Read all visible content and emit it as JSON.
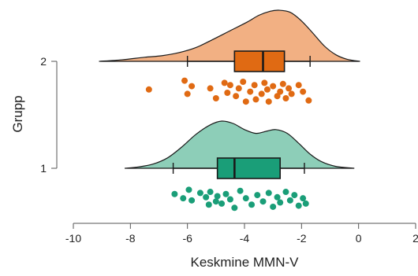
{
  "chart_data": {
    "type": "raincloud",
    "title": "",
    "xlabel": "Keskmine MMN-V",
    "ylabel": "Grupp",
    "xlim": [
      -10,
      2
    ],
    "x_ticks": [
      "-10",
      "-8",
      "-6",
      "-4",
      "-2",
      "0",
      "2"
    ],
    "y_ticks": [
      "1",
      "2"
    ],
    "groups": [
      {
        "name": "2",
        "color": "#e06a13",
        "density_fill": "#f2b083",
        "box": {
          "whisker_low": -6.0,
          "q1": -4.35,
          "median": -3.35,
          "q3": -2.6,
          "whisker_high": -1.7
        },
        "density_range": [
          -9.1,
          0.05
        ],
        "density": [
          {
            "x": -9.1,
            "y": 0.0
          },
          {
            "x": -8.3,
            "y": 0.03
          },
          {
            "x": -7.5,
            "y": 0.08
          },
          {
            "x": -6.9,
            "y": 0.11
          },
          {
            "x": -6.3,
            "y": 0.17
          },
          {
            "x": -5.7,
            "y": 0.27
          },
          {
            "x": -5.1,
            "y": 0.43
          },
          {
            "x": -4.5,
            "y": 0.6
          },
          {
            "x": -3.9,
            "y": 0.77
          },
          {
            "x": -3.5,
            "y": 0.9
          },
          {
            "x": -3.1,
            "y": 0.98
          },
          {
            "x": -2.8,
            "y": 1.0
          },
          {
            "x": -2.4,
            "y": 0.96
          },
          {
            "x": -2.0,
            "y": 0.79
          },
          {
            "x": -1.6,
            "y": 0.55
          },
          {
            "x": -1.2,
            "y": 0.3
          },
          {
            "x": -0.8,
            "y": 0.13
          },
          {
            "x": -0.4,
            "y": 0.04
          },
          {
            "x": 0.05,
            "y": 0.0
          }
        ],
        "points": [
          {
            "x": -7.35,
            "j": 0.35
          },
          {
            "x": -6.1,
            "j": -0.05
          },
          {
            "x": -6.0,
            "j": 0.55
          },
          {
            "x": -5.85,
            "j": 0.2
          },
          {
            "x": -5.2,
            "j": 0.3
          },
          {
            "x": -5.0,
            "j": 0.75
          },
          {
            "x": -4.7,
            "j": 0.05
          },
          {
            "x": -4.6,
            "j": 0.5
          },
          {
            "x": -4.5,
            "j": 0.15
          },
          {
            "x": -4.3,
            "j": 0.65
          },
          {
            "x": -4.2,
            "j": 0.3
          },
          {
            "x": -4.05,
            "j": 0.0
          },
          {
            "x": -3.95,
            "j": 0.9
          },
          {
            "x": -3.8,
            "j": 0.45
          },
          {
            "x": -3.65,
            "j": 0.15
          },
          {
            "x": -3.6,
            "j": 0.8
          },
          {
            "x": -3.4,
            "j": 0.55
          },
          {
            "x": -3.3,
            "j": 0.05
          },
          {
            "x": -3.2,
            "j": 0.35
          },
          {
            "x": -3.15,
            "j": 0.9
          },
          {
            "x": -3.0,
            "j": 0.2
          },
          {
            "x": -2.85,
            "j": 0.65
          },
          {
            "x": -2.75,
            "j": 0.45
          },
          {
            "x": -2.65,
            "j": 0.1
          },
          {
            "x": -2.55,
            "j": 0.75
          },
          {
            "x": -2.45,
            "j": 0.3
          },
          {
            "x": -2.35,
            "j": 0.55
          },
          {
            "x": -2.1,
            "j": 0.15
          },
          {
            "x": -1.95,
            "j": 0.45
          },
          {
            "x": -1.75,
            "j": 0.85
          }
        ]
      },
      {
        "name": "1",
        "color": "#1a9e78",
        "density_fill": "#8dceb8",
        "box": {
          "whisker_low": -6.5,
          "q1": -4.95,
          "median": -4.35,
          "q3": -2.75,
          "whisker_high": -1.9
        },
        "density_range": [
          -8.2,
          -0.15
        ],
        "density": [
          {
            "x": -8.2,
            "y": 0.0
          },
          {
            "x": -7.7,
            "y": 0.03
          },
          {
            "x": -7.2,
            "y": 0.09
          },
          {
            "x": -6.7,
            "y": 0.22
          },
          {
            "x": -6.2,
            "y": 0.45
          },
          {
            "x": -5.7,
            "y": 0.72
          },
          {
            "x": -5.2,
            "y": 0.92
          },
          {
            "x": -4.8,
            "y": 1.0
          },
          {
            "x": -4.4,
            "y": 0.95
          },
          {
            "x": -4.0,
            "y": 0.82
          },
          {
            "x": -3.6,
            "y": 0.74
          },
          {
            "x": -3.2,
            "y": 0.79
          },
          {
            "x": -2.9,
            "y": 0.82
          },
          {
            "x": -2.5,
            "y": 0.74
          },
          {
            "x": -2.1,
            "y": 0.53
          },
          {
            "x": -1.7,
            "y": 0.3
          },
          {
            "x": -1.3,
            "y": 0.14
          },
          {
            "x": -0.8,
            "y": 0.04
          },
          {
            "x": -0.15,
            "y": 0.0
          }
        ],
        "points": [
          {
            "x": -6.45,
            "j": 0.25
          },
          {
            "x": -6.15,
            "j": 0.45
          },
          {
            "x": -5.95,
            "j": 0.05
          },
          {
            "x": -5.85,
            "j": 0.55
          },
          {
            "x": -5.55,
            "j": 0.2
          },
          {
            "x": -5.35,
            "j": 0.4
          },
          {
            "x": -5.25,
            "j": 0.75
          },
          {
            "x": -5.2,
            "j": 0.15
          },
          {
            "x": -5.0,
            "j": 0.6
          },
          {
            "x": -4.95,
            "j": 0.35
          },
          {
            "x": -4.8,
            "j": 0.7
          },
          {
            "x": -4.65,
            "j": 0.25
          },
          {
            "x": -4.5,
            "j": 0.5
          },
          {
            "x": -4.35,
            "j": 0.9
          },
          {
            "x": -4.15,
            "j": 0.1
          },
          {
            "x": -3.95,
            "j": 0.45
          },
          {
            "x": -3.75,
            "j": 0.75
          },
          {
            "x": -3.55,
            "j": 0.3
          },
          {
            "x": -3.35,
            "j": 0.6
          },
          {
            "x": -3.15,
            "j": 0.2
          },
          {
            "x": -3.0,
            "j": 0.85
          },
          {
            "x": -2.85,
            "j": 0.4
          },
          {
            "x": -2.75,
            "j": 0.65
          },
          {
            "x": -2.55,
            "j": 0.15
          },
          {
            "x": -2.4,
            "j": 0.55
          },
          {
            "x": -2.25,
            "j": 0.3
          },
          {
            "x": -2.1,
            "j": 0.8
          },
          {
            "x": -1.95,
            "j": 0.45
          },
          {
            "x": -1.85,
            "j": 0.7
          }
        ]
      }
    ]
  }
}
